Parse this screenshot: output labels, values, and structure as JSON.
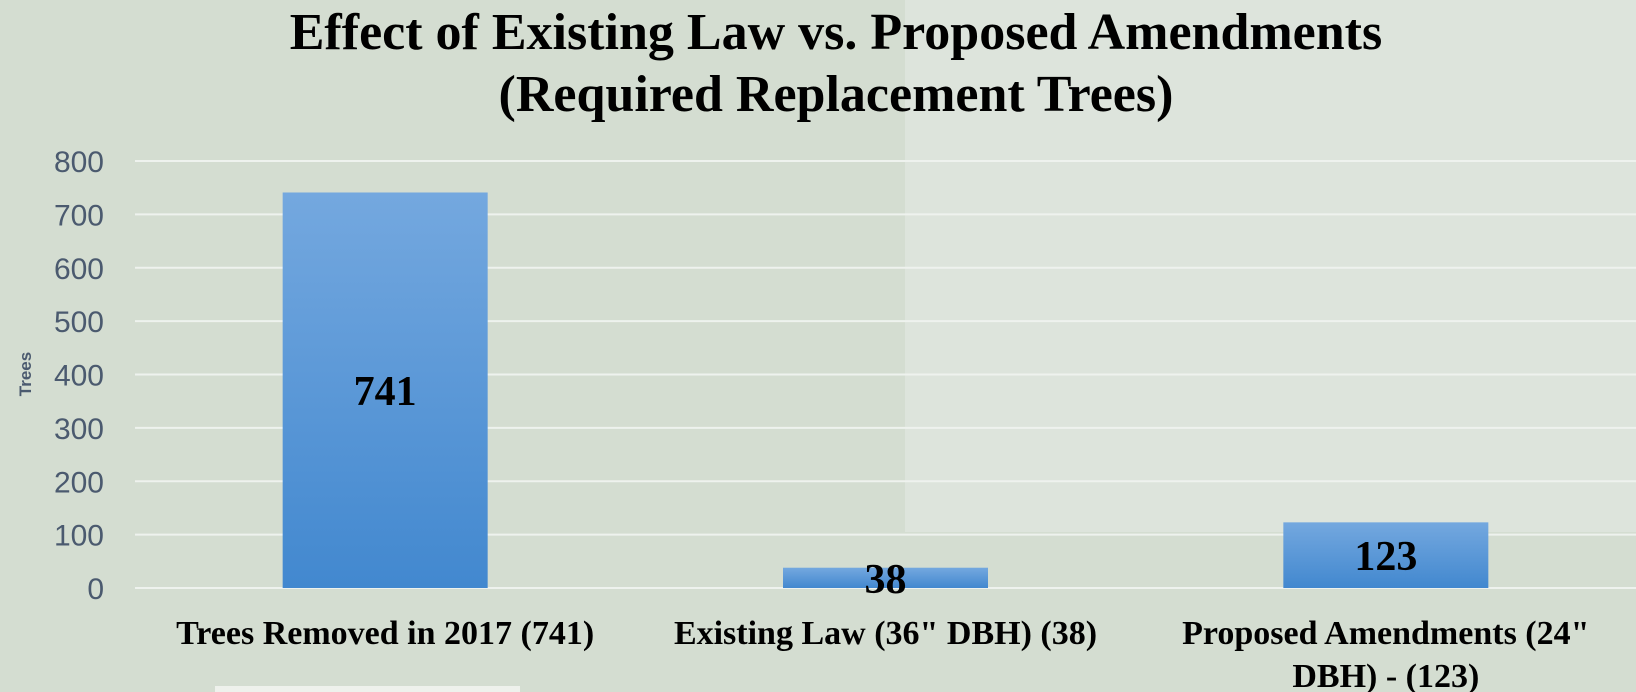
{
  "chart_data": {
    "type": "bar",
    "title": "Effect of Existing Law vs. Proposed Amendments\n(Required Replacement Trees)",
    "ylabel": "Trees",
    "xlabel": "",
    "ylim": [
      0,
      800
    ],
    "yticks": [
      0,
      100,
      200,
      300,
      400,
      500,
      600,
      700,
      800
    ],
    "categories": [
      [
        "Trees Removed in 2017 (741)"
      ],
      [
        "Existing Law (36\" DBH) (38)"
      ],
      [
        "Proposed Amendments (24\"",
        "DBH) - (123)"
      ]
    ],
    "values": [
      741,
      38,
      123
    ],
    "data_labels": [
      "741",
      "38",
      "123"
    ],
    "grid": true,
    "legend": "none",
    "colors": {
      "bar_top": "#74a8df",
      "bar_bottom": "#4288cf",
      "grid": "#eef2ee",
      "tick_text": "#4b5a6f"
    }
  }
}
